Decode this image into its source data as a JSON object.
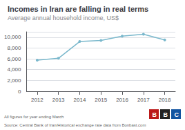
{
  "chart_data": {
    "type": "line",
    "title": "Incomes in Iran are falling in real terms",
    "subtitle": "Average annual household income, US$",
    "annotations": [
      "All figures for year ending March",
      "Source: Central Bank of Iran/Historical exchange rate data from Bonbast.com"
    ],
    "logo": {
      "labels": [
        "B",
        "B",
        "C"
      ],
      "colors": [
        "#bb1919",
        "#222222",
        "#1254a0"
      ]
    },
    "x": [
      2012,
      2013,
      2014,
      2015,
      2016,
      2017,
      2018
    ],
    "values": [
      5750,
      6100,
      9200,
      9400,
      10200,
      10550,
      9500
    ],
    "color": "#7ab8cc",
    "marker": "circle",
    "xlim": [
      2011.5,
      2018.5
    ],
    "xticks": [
      2012,
      2013,
      2014,
      2015,
      2016,
      2017,
      2018
    ],
    "ylim": [
      0,
      11000
    ],
    "yticks": [
      0,
      {
        "value": 2000,
        "label": "2,000"
      },
      {
        "value": 4000,
        "label": "4,000"
      },
      {
        "value": 6000,
        "label": "6,000"
      },
      {
        "value": 8000,
        "label": "8,000"
      },
      {
        "value": 10000,
        "label": "10,000"
      }
    ],
    "grid": true
  }
}
